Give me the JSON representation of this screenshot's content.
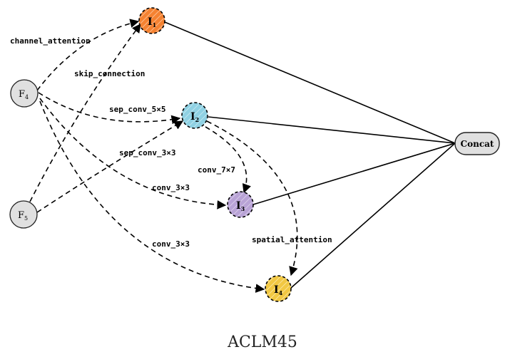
{
  "nodes": {
    "i1": {
      "letter": "I",
      "sub": "1",
      "color": "#f58231"
    },
    "i2": {
      "letter": "I",
      "sub": "2",
      "color": "#8fd1e3"
    },
    "i3": {
      "letter": "I",
      "sub": "3",
      "color": "#b9a3d6"
    },
    "i4": {
      "letter": "I",
      "sub": "4",
      "color": "#f2c842"
    },
    "f4": {
      "letter": "F",
      "sub": "4"
    },
    "f5": {
      "letter": "F",
      "sub": "5"
    },
    "concat": {
      "label": "Concat"
    }
  },
  "edge_labels": {
    "channel_attention": "channel_attention",
    "skip_connection": "skip_connection",
    "sep_conv_5x5": "sep_conv_5×5",
    "sep_conv_3x3": "sep_conv_3×3",
    "conv_7x7": "conv_7×7",
    "conv_3x3_a": "conv_3×3",
    "conv_3x3_b": "conv_3×3",
    "spatial_attention": "spatial_attention"
  },
  "caption": "ACLM45"
}
